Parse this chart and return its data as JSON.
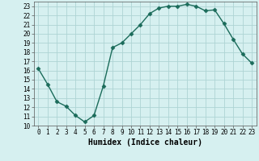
{
  "x": [
    0,
    1,
    2,
    3,
    4,
    5,
    6,
    7,
    8,
    9,
    10,
    11,
    12,
    13,
    14,
    15,
    16,
    17,
    18,
    19,
    20,
    21,
    22,
    23
  ],
  "y": [
    16.2,
    14.5,
    12.6,
    12.1,
    11.1,
    10.4,
    11.1,
    14.3,
    18.5,
    19.0,
    20.0,
    21.0,
    22.2,
    22.8,
    23.0,
    23.0,
    23.2,
    23.0,
    22.5,
    22.6,
    21.1,
    19.4,
    17.8,
    16.8
  ],
  "line_color": "#1a6b5a",
  "marker": "D",
  "marker_size": 2.5,
  "bg_color": "#d6f0f0",
  "grid_color": "#aed4d4",
  "xlabel": "Humidex (Indice chaleur)",
  "xlim": [
    -0.5,
    23.5
  ],
  "ylim": [
    10,
    23.5
  ],
  "yticks": [
    10,
    11,
    12,
    13,
    14,
    15,
    16,
    17,
    18,
    19,
    20,
    21,
    22,
    23
  ],
  "xticks": [
    0,
    1,
    2,
    3,
    4,
    5,
    6,
    7,
    8,
    9,
    10,
    11,
    12,
    13,
    14,
    15,
    16,
    17,
    18,
    19,
    20,
    21,
    22,
    23
  ],
  "tick_fontsize": 5.5,
  "label_fontsize": 7,
  "linewidth": 1.0
}
